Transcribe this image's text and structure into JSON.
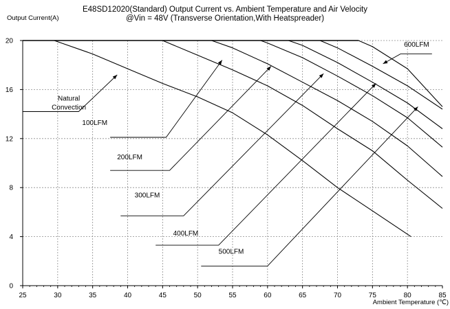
{
  "chart_data": {
    "type": "line",
    "title": "E48SD12020(Standard) Output Current vs. Ambient Temperature and Air Velocity",
    "subtitle": "@Vin = 48V (Transverse Orientation,With Heatspreader)",
    "ylabel": "Output Current(A)",
    "xlabel": "Ambient Temperature (℃)",
    "xlim": [
      25,
      85
    ],
    "ylim": [
      0,
      21
    ],
    "xticks": [
      25,
      30,
      35,
      40,
      45,
      50,
      55,
      60,
      65,
      70,
      75,
      80,
      85
    ],
    "yticks": [
      0,
      4,
      8,
      12,
      16,
      20
    ],
    "grid": true,
    "series": [
      {
        "name": "Natural Convection",
        "x": [
          29.5,
          35,
          40,
          45,
          50,
          55,
          60,
          65,
          70,
          75,
          80.5
        ],
        "y": [
          20,
          18.9,
          17.7,
          16.5,
          15.4,
          14.1,
          12.3,
          10.2,
          8.0,
          6.1,
          4.0
        ]
      },
      {
        "name": "100LFM",
        "x": [
          45,
          50,
          55,
          60,
          65,
          70,
          75,
          80,
          85
        ],
        "y": [
          20,
          18.8,
          17.6,
          16.3,
          14.7,
          12.8,
          11.0,
          8.6,
          6.3
        ]
      },
      {
        "name": "200LFM",
        "x": [
          52,
          55,
          60,
          65,
          70,
          75,
          80,
          85
        ],
        "y": [
          20,
          19.4,
          18.1,
          16.6,
          15.1,
          13.4,
          11.4,
          8.9
        ]
      },
      {
        "name": "300LFM",
        "x": [
          59,
          60,
          65,
          70,
          75,
          80,
          85
        ],
        "y": [
          20,
          19.8,
          18.6,
          17.1,
          15.5,
          13.7,
          11.3
        ]
      },
      {
        "name": "400LFM",
        "x": [
          63,
          65,
          70,
          75,
          80,
          85
        ],
        "y": [
          20,
          19.6,
          18.2,
          16.6,
          14.9,
          12.8
        ]
      },
      {
        "name": "500LFM",
        "x": [
          67.5,
          70,
          75,
          80,
          85
        ],
        "y": [
          20,
          19.4,
          17.9,
          16.3,
          14.4
        ]
      },
      {
        "name": "600LFM",
        "x": [
          73,
          75,
          80,
          85
        ],
        "y": [
          20,
          19.5,
          17.7,
          14.6
        ]
      }
    ],
    "annotations": [
      {
        "lines": [
          "Natural",
          "Convection"
        ],
        "series": "Natural Convection",
        "text_at": [
          31.6,
          15.1
        ],
        "leader": [
          [
            25,
            14.2
          ],
          [
            33,
            14.2
          ],
          [
            38.5,
            17.2
          ]
        ]
      },
      {
        "text": "100LFM",
        "series": "100LFM",
        "text_at": [
          33.5,
          13.1
        ],
        "leader": [
          [
            37.5,
            12.1
          ],
          [
            45.5,
            12.1
          ],
          [
            53.5,
            18.4
          ]
        ]
      },
      {
        "text": "200LFM",
        "series": "200LFM",
        "text_at": [
          38.5,
          10.3
        ],
        "leader": [
          [
            37.5,
            9.4
          ],
          [
            46,
            9.4
          ],
          [
            60.5,
            17.9
          ]
        ]
      },
      {
        "text": "300LFM",
        "series": "300LFM",
        "text_at": [
          41,
          7.2
        ],
        "leader": [
          [
            39,
            5.7
          ],
          [
            48,
            5.7
          ],
          [
            68,
            17.3
          ]
        ]
      },
      {
        "text": "400LFM",
        "series": "400LFM",
        "text_at": [
          46.5,
          4.1
        ],
        "leader": [
          [
            44,
            3.3
          ],
          [
            53,
            3.3
          ],
          [
            75.5,
            16.5
          ]
        ]
      },
      {
        "text": "500LFM",
        "series": "500LFM",
        "text_at": [
          53,
          2.6
        ],
        "leader": [
          [
            50.5,
            1.6
          ],
          [
            60,
            1.6
          ],
          [
            81.5,
            14.6
          ]
        ]
      },
      {
        "text": "600LFM",
        "series": "600LFM",
        "text_at": [
          79.5,
          19.5
        ],
        "leader": [
          [
            83.5,
            18.9
          ],
          [
            79,
            18.9
          ],
          [
            76.5,
            18.1
          ]
        ]
      }
    ]
  }
}
